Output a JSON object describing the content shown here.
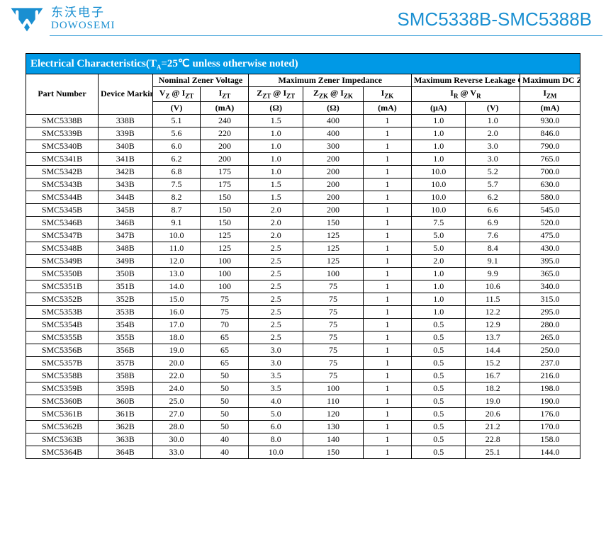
{
  "header": {
    "company_cn": "东沃电子",
    "company_en": "DOWOSEMI",
    "part_range": "SMC5338B-SMC5388B",
    "logo_colors": {
      "shape": "#1a8fd1",
      "letter": "#ffffff"
    }
  },
  "title": "Electrical Characteristics(T",
  "title_sub": "A",
  "title_rest": "=25℃ unless otherwise noted)",
  "colors": {
    "title_bg": "#0099e6",
    "title_fg": "#ffffff",
    "accent": "#1a8fd1"
  },
  "group_headers": {
    "part": "Part Number",
    "marking": "Device Marking Code",
    "zener_v": "Nominal Zener Voltage",
    "zener_z": "Maximum Zener Impedance",
    "ir": "Maximum Reverse Leakage Current",
    "izm": "Maximum DC Zener Current"
  },
  "param_headers": {
    "vz": "V_Z @ I_ZT",
    "izt": "I_ZT",
    "zzt": "Z_ZT @ I_ZT",
    "zzk": "Z_ZK @ I_ZK",
    "izk": "I_ZK",
    "ir": "I_R @ V_R",
    "izm": "I_ZM"
  },
  "unit_headers": {
    "vz": "(V)",
    "izt": "(mA)",
    "zzt": "(Ω)",
    "zzk": "(Ω)",
    "izk": "(mA)",
    "ir_ua": "(μA)",
    "ir_v": "(V)",
    "izm": "(mA)"
  },
  "rows": [
    [
      "SMC5338B",
      "338B",
      "5.1",
      "240",
      "1.5",
      "400",
      "1",
      "1.0",
      "1.0",
      "930.0"
    ],
    [
      "SMC5339B",
      "339B",
      "5.6",
      "220",
      "1.0",
      "400",
      "1",
      "1.0",
      "2.0",
      "846.0"
    ],
    [
      "SMC5340B",
      "340B",
      "6.0",
      "200",
      "1.0",
      "300",
      "1",
      "1.0",
      "3.0",
      "790.0"
    ],
    [
      "SMC5341B",
      "341B",
      "6.2",
      "200",
      "1.0",
      "200",
      "1",
      "1.0",
      "3.0",
      "765.0"
    ],
    [
      "SMC5342B",
      "342B",
      "6.8",
      "175",
      "1.0",
      "200",
      "1",
      "10.0",
      "5.2",
      "700.0"
    ],
    [
      "SMC5343B",
      "343B",
      "7.5",
      "175",
      "1.5",
      "200",
      "1",
      "10.0",
      "5.7",
      "630.0"
    ],
    [
      "SMC5344B",
      "344B",
      "8.2",
      "150",
      "1.5",
      "200",
      "1",
      "10.0",
      "6.2",
      "580.0"
    ],
    [
      "SMC5345B",
      "345B",
      "8.7",
      "150",
      "2.0",
      "200",
      "1",
      "10.0",
      "6.6",
      "545.0"
    ],
    [
      "SMC5346B",
      "346B",
      "9.1",
      "150",
      "2.0",
      "150",
      "1",
      "7.5",
      "6.9",
      "520.0"
    ],
    [
      "SMC5347B",
      "347B",
      "10.0",
      "125",
      "2.0",
      "125",
      "1",
      "5.0",
      "7.6",
      "475.0"
    ],
    [
      "SMC5348B",
      "348B",
      "11.0",
      "125",
      "2.5",
      "125",
      "1",
      "5.0",
      "8.4",
      "430.0"
    ],
    [
      "SMC5349B",
      "349B",
      "12.0",
      "100",
      "2.5",
      "125",
      "1",
      "2.0",
      "9.1",
      "395.0"
    ],
    [
      "SMC5350B",
      "350B",
      "13.0",
      "100",
      "2.5",
      "100",
      "1",
      "1.0",
      "9.9",
      "365.0"
    ],
    [
      "SMC5351B",
      "351B",
      "14.0",
      "100",
      "2.5",
      "75",
      "1",
      "1.0",
      "10.6",
      "340.0"
    ],
    [
      "SMC5352B",
      "352B",
      "15.0",
      "75",
      "2.5",
      "75",
      "1",
      "1.0",
      "11.5",
      "315.0"
    ],
    [
      "SMC5353B",
      "353B",
      "16.0",
      "75",
      "2.5",
      "75",
      "1",
      "1.0",
      "12.2",
      "295.0"
    ],
    [
      "SMC5354B",
      "354B",
      "17.0",
      "70",
      "2.5",
      "75",
      "1",
      "0.5",
      "12.9",
      "280.0"
    ],
    [
      "SMC5355B",
      "355B",
      "18.0",
      "65",
      "2.5",
      "75",
      "1",
      "0.5",
      "13.7",
      "265.0"
    ],
    [
      "SMC5356B",
      "356B",
      "19.0",
      "65",
      "3.0",
      "75",
      "1",
      "0.5",
      "14.4",
      "250.0"
    ],
    [
      "SMC5357B",
      "357B",
      "20.0",
      "65",
      "3.0",
      "75",
      "1",
      "0.5",
      "15.2",
      "237.0"
    ],
    [
      "SMC5358B",
      "358B",
      "22.0",
      "50",
      "3.5",
      "75",
      "1",
      "0.5",
      "16.7",
      "216.0"
    ],
    [
      "SMC5359B",
      "359B",
      "24.0",
      "50",
      "3.5",
      "100",
      "1",
      "0.5",
      "18.2",
      "198.0"
    ],
    [
      "SMC5360B",
      "360B",
      "25.0",
      "50",
      "4.0",
      "110",
      "1",
      "0.5",
      "19.0",
      "190.0"
    ],
    [
      "SMC5361B",
      "361B",
      "27.0",
      "50",
      "5.0",
      "120",
      "1",
      "0.5",
      "20.6",
      "176.0"
    ],
    [
      "SMC5362B",
      "362B",
      "28.0",
      "50",
      "6.0",
      "130",
      "1",
      "0.5",
      "21.2",
      "170.0"
    ],
    [
      "SMC5363B",
      "363B",
      "30.0",
      "40",
      "8.0",
      "140",
      "1",
      "0.5",
      "22.8",
      "158.0"
    ],
    [
      "SMC5364B",
      "364B",
      "33.0",
      "40",
      "10.0",
      "150",
      "1",
      "0.5",
      "25.1",
      "144.0"
    ]
  ]
}
